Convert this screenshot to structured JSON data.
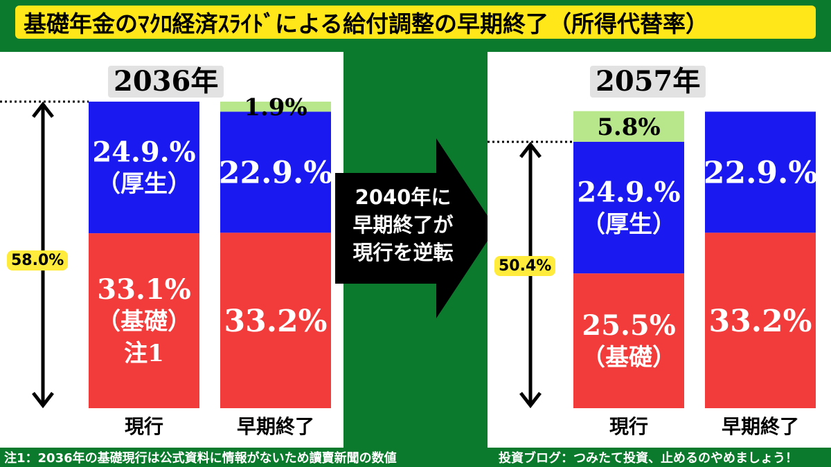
{
  "title": "基礎年金のﾏｸﾛ経済ｽﾗｲﾄﾞによる給付調整の早期終了（所得代替率）",
  "arrow_text": [
    "2040年に",
    "早期終了が",
    "現行を逆転"
  ],
  "footer_left": "注1：2036年の基礎現行は公式資料に情報がないため讀賣新聞の数値",
  "footer_right": "投資ブログ：つみたて投資、止めるのやめましょう！",
  "colors": {
    "kisu": "#f23c3c",
    "kousei": "#1a1af0",
    "extra": "#b8e68a",
    "background": "#0c7a2c",
    "title_bg": "#ffe71a"
  },
  "chart_data": [
    {
      "type": "bar",
      "stacked": true,
      "year_label": "2036年",
      "total_label": "58.0%",
      "categories": [
        "現行",
        "早期終了"
      ],
      "series": [
        {
          "key": "kiso",
          "values": [
            33.1,
            33.2
          ],
          "labels": [
            [
              "33.1%",
              "（基礎）",
              "注1"
            ],
            [
              "33.2%"
            ]
          ]
        },
        {
          "key": "kousei",
          "values": [
            24.9,
            22.9
          ],
          "labels": [
            [
              "24.9.%",
              "（厚生）"
            ],
            [
              "22.9.%"
            ]
          ]
        },
        {
          "key": "extra",
          "values": [
            0,
            1.9
          ],
          "labels": [
            [],
            [
              "1.9%"
            ]
          ]
        }
      ]
    },
    {
      "type": "bar",
      "stacked": true,
      "year_label": "2057年",
      "total_label": "50.4%",
      "categories": [
        "現行",
        "早期終了"
      ],
      "series": [
        {
          "key": "kiso",
          "values": [
            25.5,
            33.2
          ],
          "labels": [
            [
              "25.5%",
              "（基礎）"
            ],
            [
              "33.2%"
            ]
          ]
        },
        {
          "key": "kousei",
          "values": [
            24.9,
            22.9
          ],
          "labels": [
            [
              "24.9.%",
              "（厚生）"
            ],
            [
              "22.9.%"
            ]
          ]
        },
        {
          "key": "extra",
          "values": [
            5.8,
            0
          ],
          "labels": [
            [
              "5.8%"
            ],
            []
          ]
        }
      ]
    }
  ]
}
